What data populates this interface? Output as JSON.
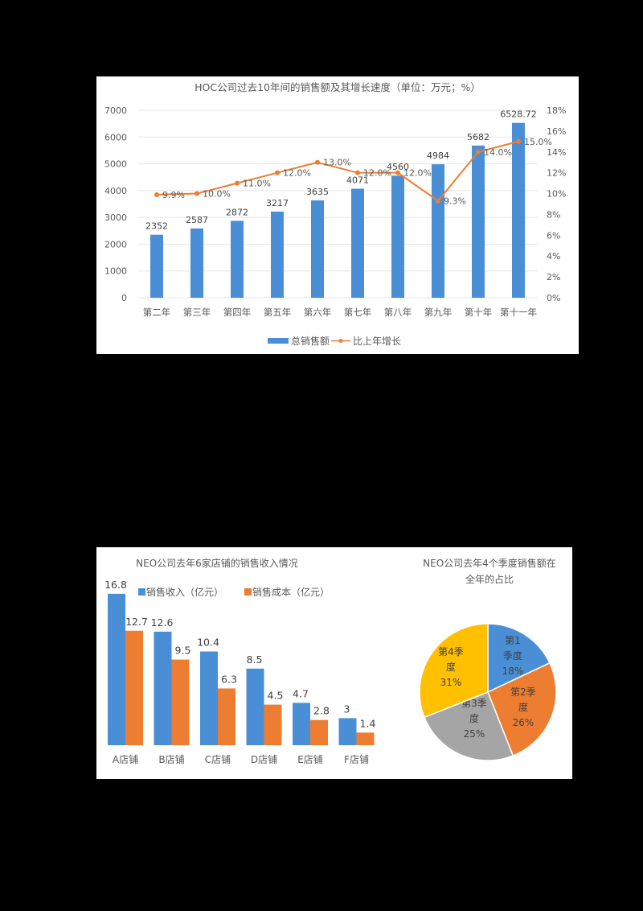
{
  "chart_data": [
    {
      "type": "bar+line",
      "title": "HOC公司过去10年间的销售额及其增长速度（单位：万元；%）",
      "categories": [
        "第二年",
        "第三年",
        "第四年",
        "第五年",
        "第六年",
        "第七年",
        "第八年",
        "第九年",
        "第十年",
        "第十一年"
      ],
      "series": [
        {
          "name": "总销售额",
          "type": "bar",
          "axis": "left",
          "color": "#4a8fd6",
          "values": [
            2352,
            2587,
            2872,
            3217,
            3635,
            4071,
            4560,
            4984,
            5682,
            6528.72
          ],
          "labels": [
            "2352",
            "2587",
            "2872",
            "3217",
            "3635",
            "4071",
            "4560",
            "4984",
            "5682",
            "6528.72"
          ]
        },
        {
          "name": "比上年增长",
          "type": "line",
          "axis": "right",
          "color": "#ed7d31",
          "values": [
            9.9,
            10.0,
            11.0,
            12.0,
            13.0,
            12.0,
            12.0,
            9.3,
            14.0,
            15.0
          ],
          "labels": [
            "9.9%",
            "10.0%",
            "11.0%",
            "12.0%",
            "13.0%",
            "12.0%",
            "12.0%",
            "9.3%",
            "14.0%",
            "15.0%"
          ]
        }
      ],
      "left_axis": {
        "ylim": [
          0,
          7000
        ],
        "ticks": [
          "0",
          "1000",
          "2000",
          "3000",
          "4000",
          "5000",
          "6000",
          "7000"
        ]
      },
      "right_axis": {
        "ylim": [
          0,
          18
        ],
        "ticks": [
          "0%",
          "2%",
          "4%",
          "6%",
          "8%",
          "10%",
          "12%",
          "14%",
          "16%",
          "18%"
        ]
      },
      "grid": true,
      "legend_position": "bottom"
    },
    {
      "type": "bar",
      "title": "NEO公司去年6家店铺的销售收入情况",
      "categories": [
        "A店铺",
        "B店铺",
        "C店铺",
        "D店铺",
        "E店铺",
        "F店铺"
      ],
      "series": [
        {
          "name": "销售收入（亿元）",
          "color": "#4a8fd6",
          "values": [
            16.8,
            12.6,
            10.4,
            8.5,
            4.7,
            3
          ]
        },
        {
          "name": "销售成本（亿元）",
          "color": "#ed7d31",
          "values": [
            12.7,
            9.5,
            6.3,
            4.5,
            2.8,
            1.4
          ]
        }
      ],
      "grid": false,
      "legend_position": "top"
    },
    {
      "type": "pie",
      "title": "NEO公司去年4个季度销售额在全年的占比",
      "slices": [
        {
          "label": "第1季度",
          "value": 18,
          "text": "18%",
          "color": "#4a8fd6"
        },
        {
          "label": "第2季度",
          "value": 26,
          "text": "26%",
          "color": "#ed7d31"
        },
        {
          "label": "第3季度",
          "value": 25,
          "text": "25%",
          "color": "#a5a5a5"
        },
        {
          "label": "第4季度",
          "value": 31,
          "text": "31%",
          "color": "#ffc000"
        }
      ]
    }
  ]
}
